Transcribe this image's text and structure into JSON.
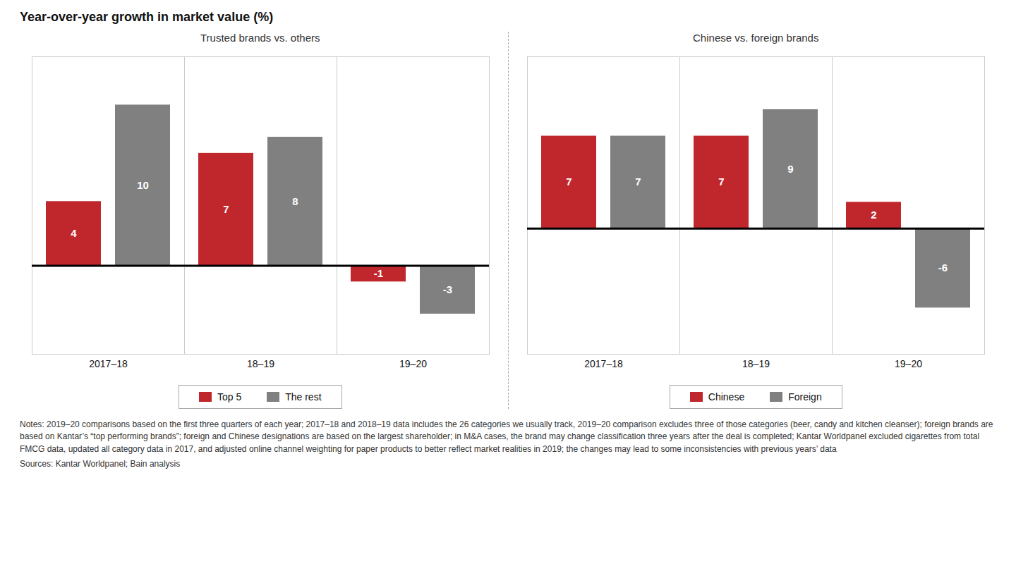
{
  "title": "Year-over-year growth in market value (%)",
  "annotations": [
    "Notes: 2019–20 comparisons based on the first three quarters of each year; 2017–18 and 2018–19 data includes the 26 categories we usually track, 2019–20 comparison excludes three of those categories (beer, candy and kitchen cleanser); foreign brands are based on Kantar’s “top performing brands”; foreign and Chinese designations are based on the largest shareholder; in M&A cases, the brand may change classification three years after the deal is completed; Kantar Worldpanel excluded cigarettes from total FMCG data, updated all category data in 2017, and adjusted online channel weighting for paper products to better reflect market realities in 2019; the changes may lead to some inconsistencies with previous years’ data",
    "Sources: Kantar Worldpanel; Bain analysis"
  ],
  "chart_data": [
    {
      "type": "bar",
      "title": "Trusted brands vs. others",
      "categories": [
        "2017–18",
        "18–19",
        "19–20"
      ],
      "series": [
        {
          "name": "Top 5",
          "color": "#C0272D",
          "values": [
            4,
            7,
            -1
          ]
        },
        {
          "name": "The rest",
          "color": "#808080",
          "values": [
            10,
            8,
            -3
          ]
        }
      ],
      "ylim": [
        -5.5,
        13
      ],
      "tick_labels": "x",
      "data_labels": true,
      "grid": false,
      "legend": "bottom"
    },
    {
      "type": "bar",
      "title": "Chinese vs. foreign brands",
      "categories": [
        "2017–18",
        "18–19",
        "19–20"
      ],
      "series": [
        {
          "name": "Chinese",
          "color": "#C0272D",
          "values": [
            7,
            7,
            2
          ]
        },
        {
          "name": "Foreign",
          "color": "#808080",
          "values": [
            7,
            9,
            -6
          ]
        }
      ],
      "ylim": [
        -9.5,
        13
      ],
      "tick_labels": "x",
      "data_labels": true,
      "grid": false,
      "legend": "bottom"
    }
  ]
}
